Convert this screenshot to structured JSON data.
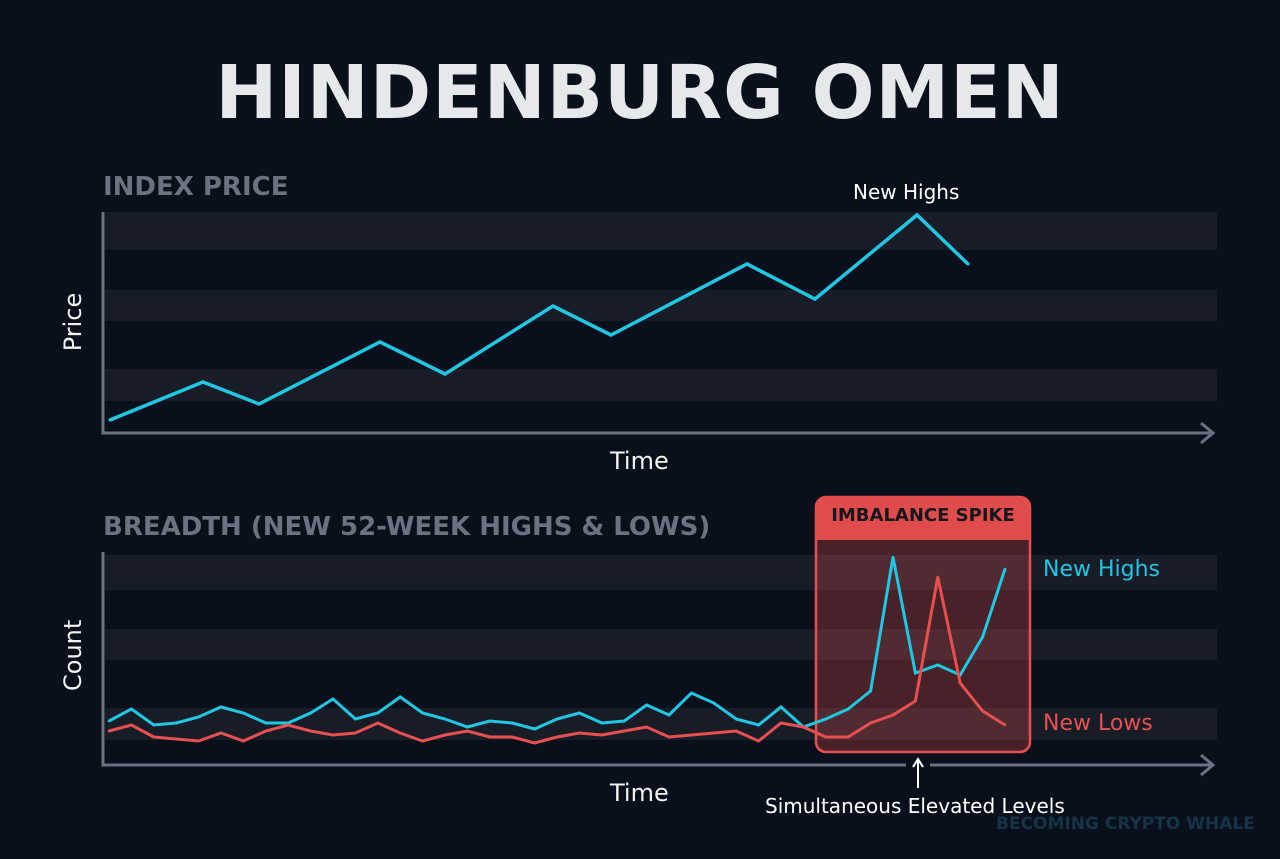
{
  "title": "HINDENBURG OMEN",
  "colors": {
    "background": "#0a101b",
    "highs": "#1ec8e4",
    "lows": "#e8504f",
    "band": "#171c27",
    "axis": "#6b7280"
  },
  "watermark": "BECOMING CRYPTO WHALE",
  "chart_data": [
    {
      "type": "line",
      "title": "INDEX PRICE",
      "xlabel": "Time",
      "ylabel": "Price",
      "xlim": [
        0,
        111
      ],
      "ylim": [
        0,
        112
      ],
      "grid": "horizontal bands",
      "annotations": [
        {
          "text": "New Highs",
          "x": 81.4,
          "y": 109
        }
      ],
      "series": [
        {
          "name": "Index Price",
          "x": [
            0.7,
            10,
            15.6,
            27.7,
            34.2,
            45,
            50.8,
            64.4,
            71.2,
            81.4,
            86.5
          ],
          "y": [
            6.5,
            25.5,
            14.5,
            45.5,
            29.5,
            63.5,
            49,
            84.5,
            67,
            109,
            84.5
          ]
        }
      ]
    },
    {
      "type": "line",
      "title": "BREADTH (NEW 52-WEEK HIGHS & LOWS)",
      "xlabel": "Time",
      "ylabel": "Count",
      "xlim": [
        0,
        49
      ],
      "ylim": [
        0,
        105
      ],
      "grid": "horizontal bands",
      "legend": "right",
      "highlight": {
        "label": "IMBALANCE SPIKE",
        "x_range": [
          31.5,
          41
        ]
      },
      "annotations": [
        {
          "text": "Simultaneous Elevated Levels",
          "x": 36.3,
          "arrow": "up"
        }
      ],
      "series": [
        {
          "name": "New Highs",
          "values": [
            22,
            28,
            20,
            21,
            24,
            29,
            26,
            21,
            21,
            26,
            33,
            23,
            26,
            34,
            26,
            23,
            19,
            22,
            21,
            18,
            23,
            26,
            21,
            22,
            30,
            25,
            36,
            31,
            23,
            20,
            29,
            19,
            23,
            28,
            37,
            104,
            46,
            50,
            45,
            64,
            98
          ]
        },
        {
          "name": "New Lows",
          "values": [
            17,
            20,
            14,
            13,
            12,
            16,
            12,
            17,
            20,
            17,
            15,
            16,
            21,
            16,
            12,
            15,
            17,
            14,
            14,
            11,
            14,
            16,
            15,
            17,
            19,
            14,
            15,
            16,
            17,
            12,
            21,
            19,
            14,
            14,
            21,
            25,
            32,
            94,
            41,
            27,
            20
          ]
        }
      ]
    }
  ]
}
